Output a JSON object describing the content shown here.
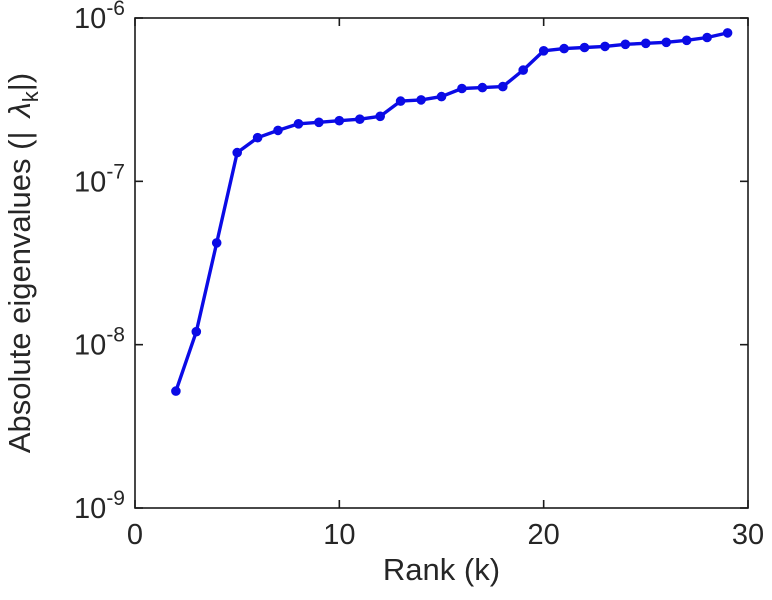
{
  "page": {
    "background": "#ffffff"
  },
  "chart_data": {
    "type": "line",
    "title": "",
    "xlabel": "Rank (k)",
    "ylabel_parts": {
      "prefix": "Absolute eigenvalues (|",
      "symbol": "λ",
      "subscript": "k",
      "suffix": "|)"
    },
    "x": [
      2,
      3,
      4,
      5,
      6,
      7,
      8,
      9,
      10,
      11,
      12,
      13,
      14,
      15,
      16,
      17,
      18,
      19,
      20,
      21,
      22,
      23,
      24,
      25,
      26,
      27,
      28,
      29
    ],
    "series": [
      {
        "name": "absolute-eigenvalues",
        "values": [
          5.2e-09,
          1.2e-08,
          4.2e-08,
          1.5e-07,
          1.85e-07,
          2.05e-07,
          2.25e-07,
          2.3e-07,
          2.35e-07,
          2.4e-07,
          2.5e-07,
          3.1e-07,
          3.15e-07,
          3.3e-07,
          3.7e-07,
          3.75e-07,
          3.8e-07,
          4.8e-07,
          6.3e-07,
          6.5e-07,
          6.6e-07,
          6.7e-07,
          6.9e-07,
          7e-07,
          7.1e-07,
          7.3e-07,
          7.6e-07,
          8.1e-07
        ]
      }
    ],
    "xlim": [
      0,
      30
    ],
    "ylog_lim": [
      -9,
      -6
    ],
    "x_ticks": [
      0,
      10,
      20,
      30
    ],
    "y_tick_exponents": [
      -9,
      -8,
      -7,
      -6
    ],
    "y_tick_base": "10",
    "grid": false,
    "legend": "none",
    "box": true,
    "line_color": "#0b0be6",
    "axis_color": "#1a1a1a",
    "text_color": "#262626",
    "marker": "circle"
  }
}
